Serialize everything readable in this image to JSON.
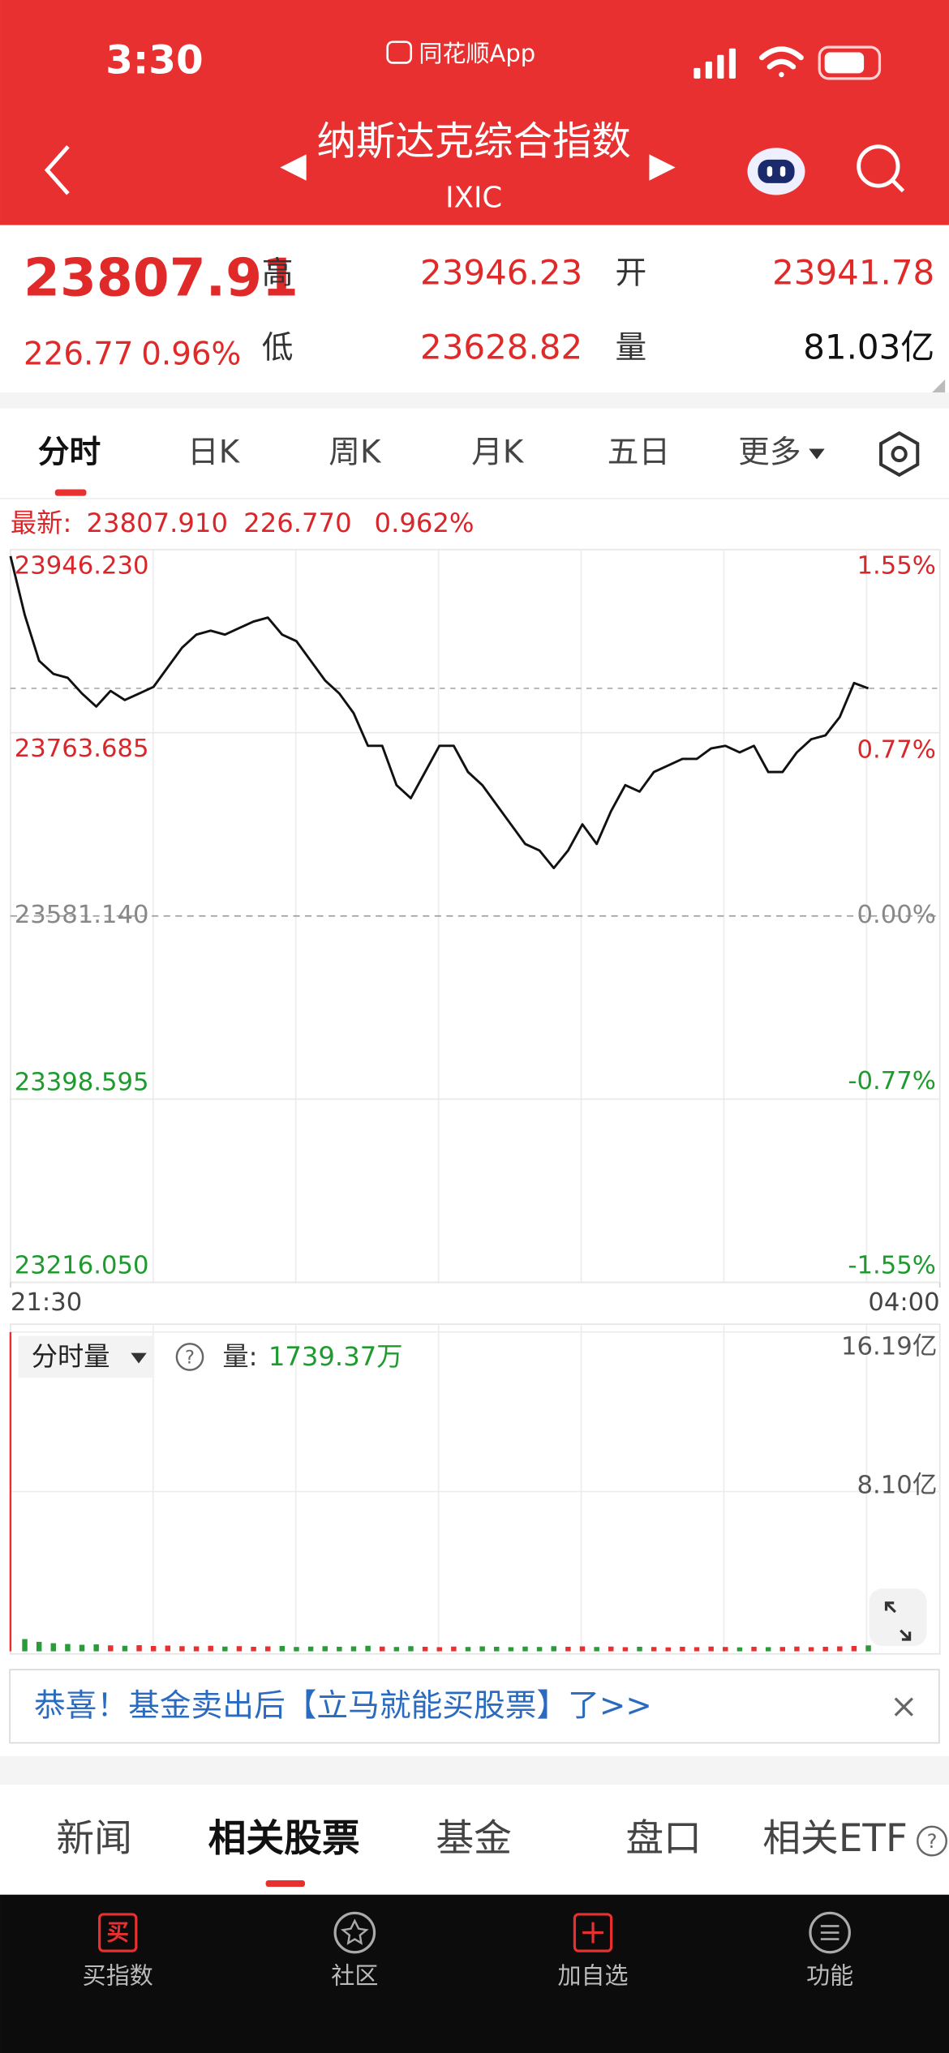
{
  "status": {
    "time": "3:30",
    "app": "同花顺App"
  },
  "header": {
    "title": "纳斯达克综合指数",
    "code": "IXIC"
  },
  "quote": {
    "price": "23807.91",
    "change": "226.77",
    "pct": "0.96%",
    "high_label": "高",
    "high": "23946.23",
    "low_label": "低",
    "low": "23628.82",
    "open_label": "开",
    "open": "23941.78",
    "vol_label": "量",
    "vol": "81.03亿"
  },
  "tabs": [
    "分时",
    "日K",
    "周K",
    "月K",
    "五日",
    "更多"
  ],
  "latest": {
    "label": "最新:",
    "price": "23807.910",
    "change": "226.770",
    "pct": "0.962%"
  },
  "chart_data": [
    {
      "type": "line",
      "color": "#111111",
      "x": [
        0,
        6,
        12,
        18,
        24,
        30,
        36,
        42,
        48,
        54,
        60,
        66,
        72,
        78,
        84,
        90,
        96,
        102,
        108,
        114,
        120,
        126,
        132,
        138,
        144,
        150,
        156,
        162,
        168,
        174,
        180,
        186,
        192,
        198,
        204,
        210,
        216,
        222,
        228,
        234,
        240,
        246,
        252,
        258,
        264,
        270,
        276,
        282,
        288,
        294,
        300,
        306,
        312,
        318,
        324,
        330,
        336,
        342,
        348,
        354,
        360
      ],
      "values": [
        23939.71,
        23881.04,
        23835.4,
        23822.36,
        23818.45,
        23802.8,
        23789.76,
        23805.41,
        23796.28,
        23802.8,
        23809.32,
        23828.88,
        23848.44,
        23861.48,
        23865.39,
        23861.48,
        23868.0,
        23874.52,
        23878.43,
        23861.48,
        23854.96,
        23835.4,
        23815.84,
        23802.8,
        23783.24,
        23750.65,
        23750.65,
        23711.53,
        23698.49,
        23724.57,
        23750.65,
        23750.65,
        23724.57,
        23711.53,
        23691.97,
        23672.41,
        23652.85,
        23646.34,
        23628.82,
        23646.34,
        23672.41,
        23652.85,
        23685.45,
        23711.53,
        23705.01,
        23724.57,
        23731.09,
        23737.61,
        23737.61,
        23748.04,
        23750.65,
        23744.13,
        23750.65,
        23724.57,
        23724.57,
        23744.13,
        23757.17,
        23761.08,
        23779.33,
        23813.23,
        23807.91
      ],
      "xlim": [
        0,
        390
      ],
      "xticks": [
        {
          "value": 0,
          "label": "21:30"
        },
        {
          "value": 390,
          "label": "04:00"
        }
      ],
      "ylim": [
        23216.05,
        23946.23
      ],
      "yticks": [
        {
          "value": 23946.23,
          "label": "23946.230"
        },
        {
          "value": 23763.685,
          "label": "23763.685"
        },
        {
          "value": 23581.14,
          "label": "23581.140"
        },
        {
          "value": 23398.595,
          "label": "23398.595"
        },
        {
          "value": 23216.05,
          "label": "23216.050"
        }
      ],
      "y2lim": [
        -1.55,
        1.55
      ],
      "y2ticks": [
        {
          "value": 1.55,
          "label": "1.55%"
        },
        {
          "value": 0.77,
          "label": "0.77%"
        },
        {
          "value": 0,
          "label": "0.00%"
        },
        {
          "value": -0.77,
          "label": "-0.77%"
        },
        {
          "value": -1.55,
          "label": "-1.55%"
        }
      ],
      "grid": true
    },
    {
      "type": "bar",
      "colors": {
        "up": "#e93030",
        "down": "#2a9a3a"
      },
      "x": [
        0,
        6,
        12,
        18,
        24,
        30,
        36,
        42,
        48,
        54,
        60,
        66,
        72,
        78,
        84,
        90,
        96,
        102,
        108,
        114,
        120,
        126,
        132,
        138,
        144,
        150,
        156,
        162,
        168,
        174,
        180,
        186,
        192,
        198,
        204,
        210,
        216,
        222,
        228,
        234,
        240,
        246,
        252,
        258,
        264,
        270,
        276,
        282,
        288,
        294,
        300,
        306,
        312,
        318,
        324,
        330,
        336,
        342,
        348,
        354,
        360
      ],
      "values": [
        16.19,
        0.62,
        0.48,
        0.41,
        0.37,
        0.33,
        0.35,
        0.3,
        0.28,
        0.31,
        0.27,
        0.29,
        0.26,
        0.25,
        0.28,
        0.24,
        0.26,
        0.23,
        0.25,
        0.27,
        0.22,
        0.24,
        0.26,
        0.23,
        0.25,
        0.28,
        0.24,
        0.22,
        0.26,
        0.23,
        0.21,
        0.24,
        0.22,
        0.25,
        0.23,
        0.21,
        0.24,
        0.22,
        0.26,
        0.23,
        0.25,
        0.22,
        0.24,
        0.21,
        0.23,
        0.22,
        0.2,
        0.23,
        0.21,
        0.24,
        0.22,
        0.2,
        0.23,
        0.21,
        0.22,
        0.24,
        0.21,
        0.23,
        0.25,
        0.27,
        0.3
      ],
      "xlim": [
        0,
        390
      ],
      "ylim": [
        0,
        16.19
      ],
      "yticks": [
        {
          "value": 16.19,
          "label": "16.19亿"
        },
        {
          "value": 8.1,
          "label": "8.10亿"
        }
      ],
      "grid": true
    }
  ],
  "volume_panel": {
    "selector": "分时量",
    "label": "量:",
    "value": "1739.37万"
  },
  "help": "?",
  "banner": {
    "text": "恭喜！基金卖出后【立马就能买股票】了>>"
  },
  "bottom_tabs": [
    "新闻",
    "相关股票",
    "基金",
    "盘口",
    "相关ETF"
  ],
  "nav": {
    "buy_icon": "买",
    "items": [
      "买指数",
      "社区",
      "加自选",
      "功能"
    ]
  }
}
